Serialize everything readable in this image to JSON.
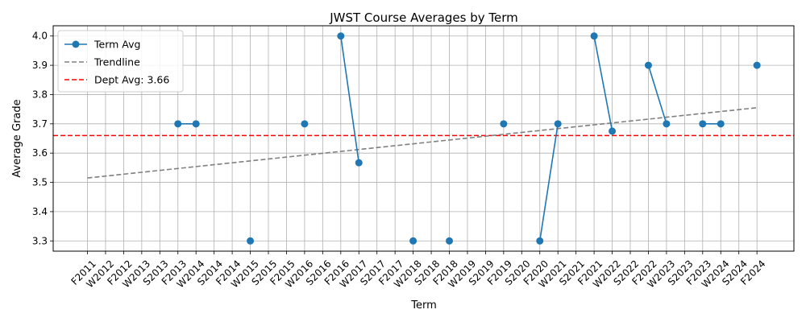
{
  "chart_data": {
    "type": "line",
    "title": "JWST Course Averages by Term",
    "xlabel": "Term",
    "ylabel": "Average Grade",
    "categories": [
      "F2011",
      "W2012",
      "F2012",
      "W2013",
      "S2013",
      "F2013",
      "W2014",
      "S2014",
      "F2014",
      "W2015",
      "S2015",
      "F2015",
      "W2016",
      "S2016",
      "F2016",
      "W2017",
      "S2017",
      "F2017",
      "W2018",
      "S2018",
      "F2018",
      "W2019",
      "S2019",
      "F2019",
      "S2020",
      "F2020",
      "W2021",
      "S2021",
      "F2021",
      "W2022",
      "S2022",
      "F2022",
      "W2023",
      "S2023",
      "F2023",
      "W2024",
      "S2024",
      "F2024"
    ],
    "yticks": [
      3.3,
      3.4,
      3.5,
      3.6,
      3.7,
      3.8,
      3.9,
      4.0
    ],
    "ylim": [
      3.265,
      4.035
    ],
    "grid": true,
    "legend_position": "top-left",
    "series": [
      {
        "name": "Term Avg",
        "color": "#1f77b4",
        "values": [
          null,
          null,
          null,
          null,
          null,
          3.7,
          3.7,
          null,
          null,
          3.3,
          null,
          null,
          3.7,
          null,
          4.0,
          3.567,
          null,
          null,
          3.3,
          null,
          3.3,
          null,
          null,
          3.7,
          null,
          3.3,
          3.7,
          null,
          4.0,
          3.675,
          null,
          3.9,
          3.7,
          null,
          3.7,
          3.7,
          null,
          3.9
        ]
      }
    ],
    "trendline": {
      "name": "Trendline",
      "color": "#808080",
      "start": 3.515,
      "end": 3.755
    },
    "reference_line": {
      "name": "Dept Avg: 3.66",
      "value": 3.66,
      "color": "#ff0000"
    }
  }
}
